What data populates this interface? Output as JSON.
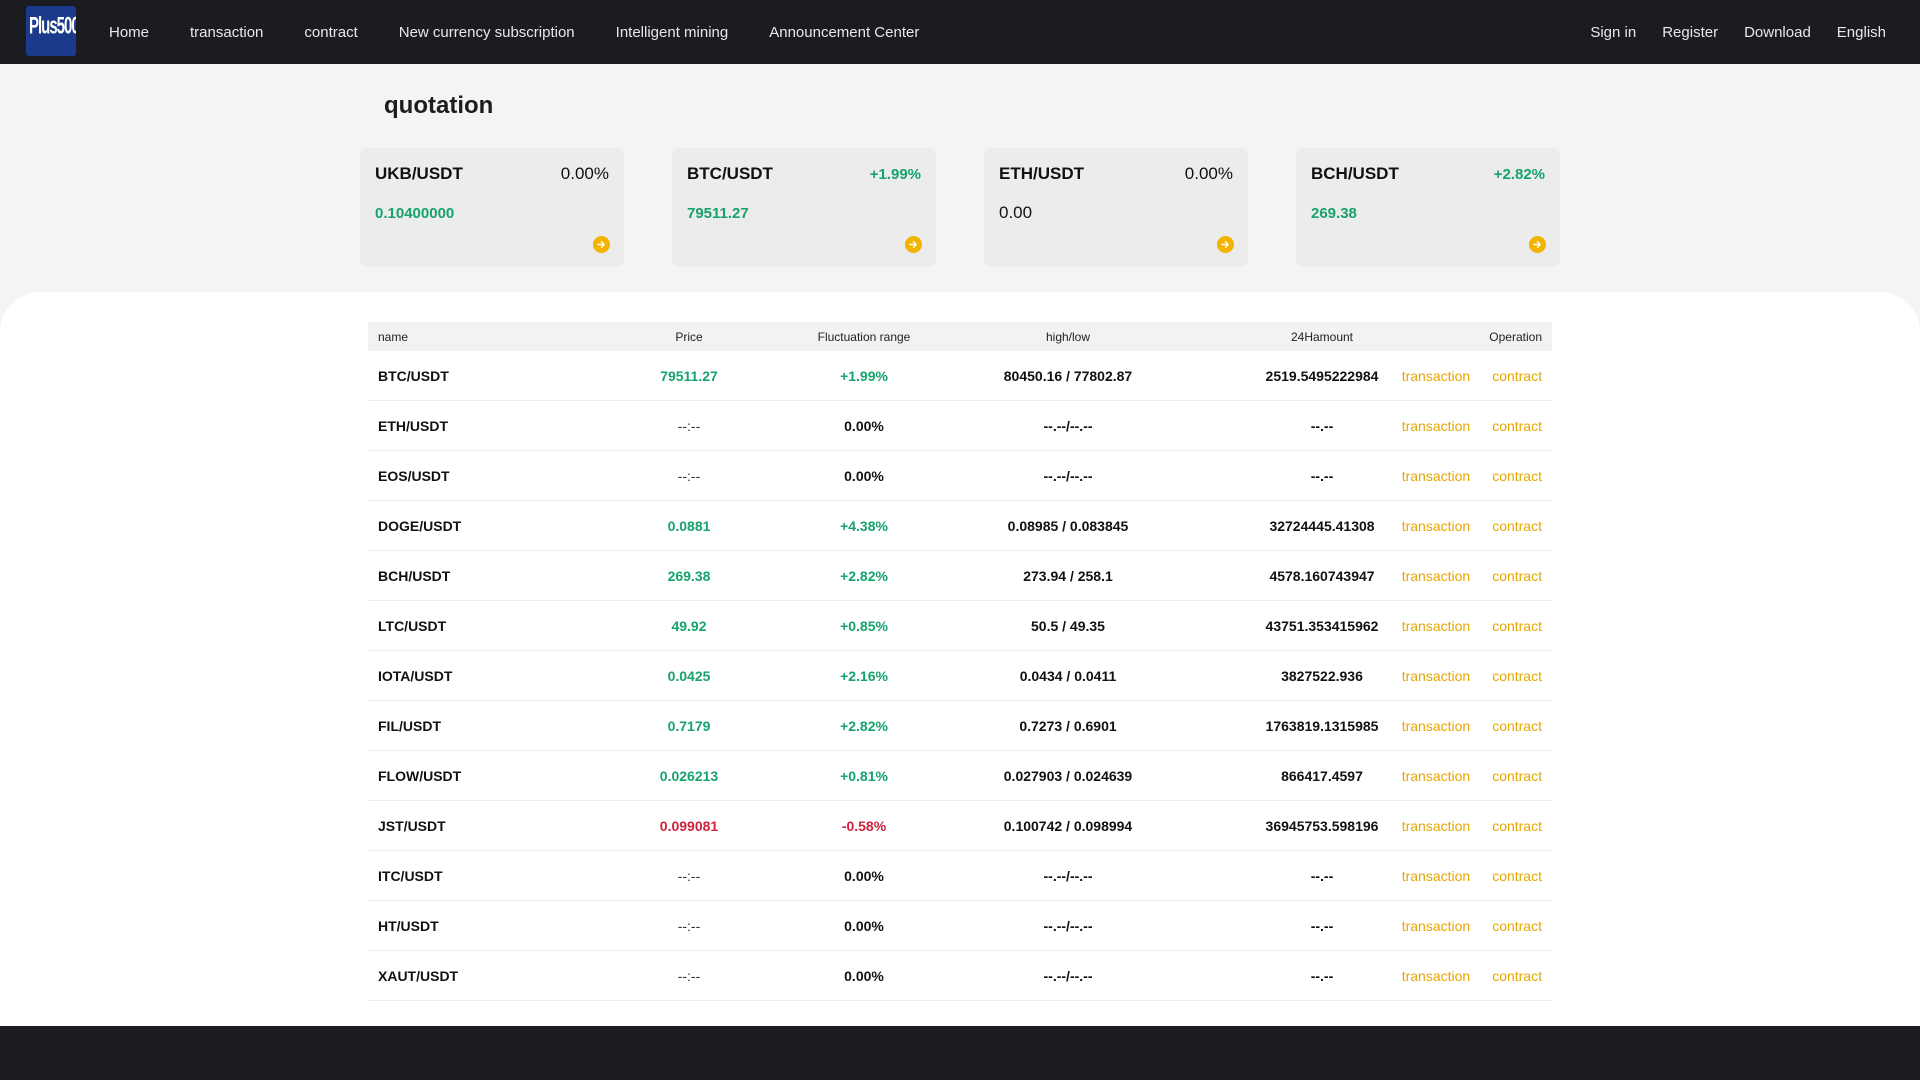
{
  "header": {
    "logo_text": "Plus500",
    "nav": [
      "Home",
      "transaction",
      "contract",
      "New currency subscription",
      "Intelligent mining",
      "Announcement Center"
    ],
    "right": [
      "Sign in",
      "Register",
      "Download",
      "English"
    ]
  },
  "quotation": {
    "title": "quotation",
    "cards": [
      {
        "pair": "UKB/USDT",
        "change": "0.00%",
        "price": "0.10400000",
        "trend": "flat-change"
      },
      {
        "pair": "BTC/USDT",
        "change": "+1.99%",
        "price": "79511.27",
        "trend": "up"
      },
      {
        "pair": "ETH/USDT",
        "change": "0.00%",
        "price": "0.00",
        "trend": "flat"
      },
      {
        "pair": "BCH/USDT",
        "change": "+2.82%",
        "price": "269.38",
        "trend": "up"
      }
    ]
  },
  "table": {
    "headers": {
      "name": "name",
      "price": "Price",
      "fluct": "Fluctuation range",
      "hl": "high/low",
      "amount": "24Hamount",
      "op": "Operation"
    },
    "op_labels": {
      "transaction": "transaction",
      "contract": "contract"
    },
    "rows": [
      {
        "name": "BTC/USDT",
        "price": "79511.27",
        "fluct": "+1.99%",
        "hl": "80450.16 / 77802.87",
        "amount": "2519.5495222984",
        "trend": "up"
      },
      {
        "name": "ETH/USDT",
        "price": "--:--",
        "fluct": "0.00%",
        "hl": "--.--/--.--",
        "amount": "--.--",
        "trend": "none"
      },
      {
        "name": "EOS/USDT",
        "price": "--:--",
        "fluct": "0.00%",
        "hl": "--.--/--.--",
        "amount": "--.--",
        "trend": "none"
      },
      {
        "name": "DOGE/USDT",
        "price": "0.0881",
        "fluct": "+4.38%",
        "hl": "0.08985 / 0.083845",
        "amount": "32724445.41308",
        "trend": "up"
      },
      {
        "name": "BCH/USDT",
        "price": "269.38",
        "fluct": "+2.82%",
        "hl": "273.94 / 258.1",
        "amount": "4578.160743947",
        "trend": "up"
      },
      {
        "name": "LTC/USDT",
        "price": "49.92",
        "fluct": "+0.85%",
        "hl": "50.5 / 49.35",
        "amount": "43751.353415962",
        "trend": "up"
      },
      {
        "name": "IOTA/USDT",
        "price": "0.0425",
        "fluct": "+2.16%",
        "hl": "0.0434 / 0.0411",
        "amount": "3827522.936",
        "trend": "up"
      },
      {
        "name": "FIL/USDT",
        "price": "0.7179",
        "fluct": "+2.82%",
        "hl": "0.7273 / 0.6901",
        "amount": "1763819.1315985",
        "trend": "up"
      },
      {
        "name": "FLOW/USDT",
        "price": "0.026213",
        "fluct": "+0.81%",
        "hl": "0.027903 / 0.024639",
        "amount": "866417.4597",
        "trend": "up"
      },
      {
        "name": "JST/USDT",
        "price": "0.099081",
        "fluct": "-0.58%",
        "hl": "0.100742 / 0.098994",
        "amount": "36945753.598196",
        "trend": "down"
      },
      {
        "name": "ITC/USDT",
        "price": "--:--",
        "fluct": "0.00%",
        "hl": "--.--/--.--",
        "amount": "--.--",
        "trend": "none"
      },
      {
        "name": "HT/USDT",
        "price": "--:--",
        "fluct": "0.00%",
        "hl": "--.--/--.--",
        "amount": "--.--",
        "trend": "none"
      },
      {
        "name": "XAUT/USDT",
        "price": "--:--",
        "fluct": "0.00%",
        "hl": "--.--/--.--",
        "amount": "--.--",
        "trend": "none"
      }
    ]
  },
  "colors": {
    "up": "#16a26b",
    "down": "#d0213d",
    "accent": "#e6a700",
    "header_bg": "#1b1c22"
  }
}
